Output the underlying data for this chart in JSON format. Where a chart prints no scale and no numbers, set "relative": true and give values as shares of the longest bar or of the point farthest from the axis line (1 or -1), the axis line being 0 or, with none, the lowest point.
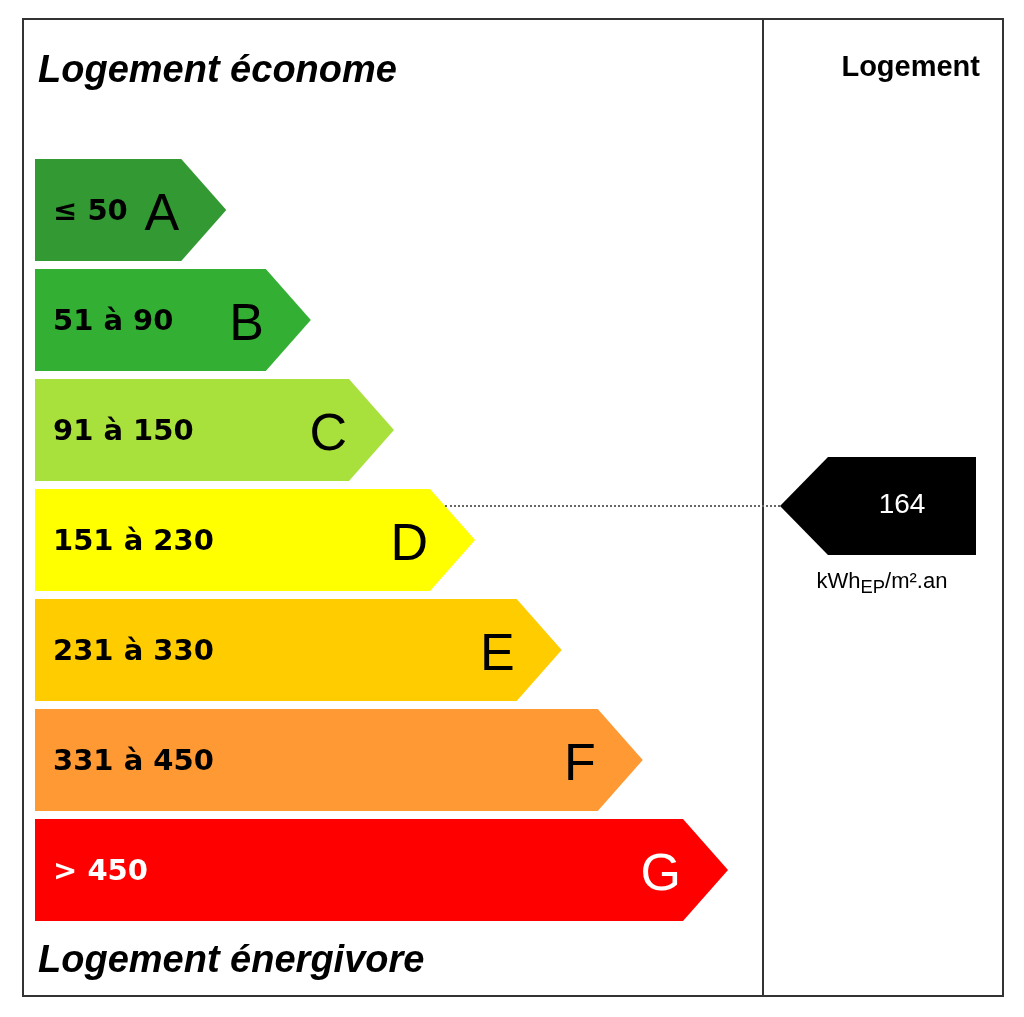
{
  "chart_data": {
    "type": "bar",
    "orientation": "horizontal",
    "relative": true,
    "title": "Logement économe",
    "categories": [
      "A",
      "B",
      "C",
      "D",
      "E",
      "F",
      "G"
    ],
    "values": [
      0.276,
      0.398,
      0.518,
      0.635,
      0.76,
      0.877,
      1
    ],
    "colors": [
      "#339933",
      "#33b033",
      "#a8e03c",
      "#ffff00",
      "#ffcc00",
      "#ff9933",
      "#ff0000"
    ],
    "ref_lines": [
      {
        "axis": "y",
        "value": "D",
        "label": "164",
        "color": "#666666",
        "line_style": "dotted"
      }
    ],
    "annotations": [
      "Logement",
      "Logement énergivore",
      "kWh$_{EP}$/m².an",
      "≤ 50",
      "51 à 90",
      "91 à 150",
      "151 à 230",
      "231 à 330",
      "331 à 450",
      "> 450"
    ]
  }
}
